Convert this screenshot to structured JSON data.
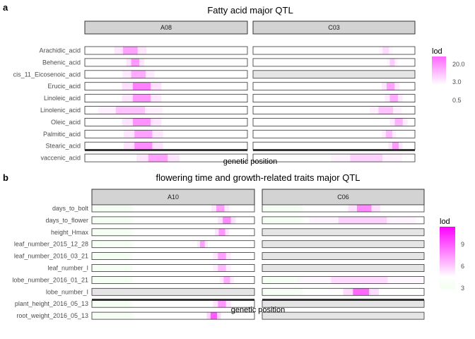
{
  "chart_data": [
    {
      "type": "heatmap",
      "panel_letter": "a",
      "title": "Fatty acid major QTL",
      "xlabel": "genetic position",
      "ylabel": "",
      "facets": [
        "A08",
        "C03"
      ],
      "traits": [
        "Arachidic_acid",
        "Behenic_acid",
        "cis_11_Eicosenoic_acid",
        "Erucic_acid",
        "Linoleic_acid",
        "Linolenic_acid",
        "Oleic_acid",
        "Palmitic_acid",
        "Stearic_acid",
        "vaccenic_acid"
      ],
      "legend": {
        "title": "lod",
        "ticks": [
          20.0,
          3.0,
          0.5
        ],
        "tick_labels": [
          "20.0",
          "3.0",
          "0.5"
        ],
        "scale": "log"
      },
      "colors": {
        "high": "#ff66ff",
        "low": "#ffffff",
        "strip_fill": "#d3d3d3",
        "na_row": "#e5e5e5"
      },
      "rows": [
        {
          "trait": "Arachidic_acid",
          "A08": {
            "peak": 0.28,
            "width": 0.09,
            "lod": 4.0
          },
          "C03": {
            "peak": 0.82,
            "width": 0.04,
            "lod": 0.8
          }
        },
        {
          "trait": "Behenic_acid",
          "A08": {
            "peak": 0.31,
            "width": 0.05,
            "lod": 5.0
          },
          "C03": {
            "peak": 0.86,
            "width": 0.03,
            "lod": 1.2
          }
        },
        {
          "trait": "cis_11_Eicosenoic_acid",
          "A08": {
            "peak": 0.33,
            "width": 0.09,
            "lod": 3.0
          },
          "C03": null
        },
        {
          "trait": "Erucic_acid",
          "A08": {
            "peak": 0.35,
            "width": 0.11,
            "lod": 10.0
          },
          "C03": {
            "peak": 0.85,
            "width": 0.05,
            "lod": 4.0
          }
        },
        {
          "trait": "Linoleic_acid",
          "A08": {
            "peak": 0.35,
            "width": 0.11,
            "lod": 5.0
          },
          "C03": {
            "peak": 0.87,
            "width": 0.05,
            "lod": 3.0
          }
        },
        {
          "trait": "Linolenic_acid",
          "A08": {
            "peak": 0.28,
            "width": 0.18,
            "lod": 1.5
          },
          "C03": {
            "peak": 0.82,
            "width": 0.09,
            "lod": 1.5
          }
        },
        {
          "trait": "Oleic_acid",
          "A08": {
            "peak": 0.35,
            "width": 0.11,
            "lod": 6.0
          },
          "C03": {
            "peak": 0.9,
            "width": 0.05,
            "lod": 2.5
          }
        },
        {
          "trait": "Palmitic_acid",
          "A08": {
            "peak": 0.36,
            "width": 0.11,
            "lod": 4.0
          },
          "C03": {
            "peak": 0.84,
            "width": 0.04,
            "lod": 2.0
          }
        },
        {
          "trait": "Stearic_acid",
          "A08": {
            "peak": 0.36,
            "width": 0.11,
            "lod": 7.0
          },
          "C03": {
            "peak": 0.88,
            "width": 0.04,
            "lod": 5.0
          }
        },
        {
          "trait": "vaccenic_acid",
          "A08": {
            "peak": 0.45,
            "width": 0.12,
            "lod": 4.0
          },
          "C03": {
            "peak": 0.7,
            "width": 0.2,
            "lod": 1.0
          }
        }
      ]
    },
    {
      "type": "heatmap",
      "panel_letter": "b",
      "title": "flowering time and growth-related traits major QTL",
      "xlabel": "genetic position",
      "ylabel": "",
      "facets": [
        "A10",
        "C06"
      ],
      "traits": [
        "days_to_bolt",
        "days_to_flower",
        "height_Hmax",
        "leaf_number_2015_12_28",
        "leaf_number_2016_03_21",
        "leaf_number_I",
        "lobe_number_2016_01_21",
        "lobe_number_I",
        "plant_height_2016_05_13",
        "root_weight_2016_05_13"
      ],
      "legend": {
        "title": "lod",
        "ticks": [
          9,
          6,
          3
        ],
        "tick_labels": [
          "9",
          "6",
          "3"
        ],
        "scale": "linear",
        "range": [
          0,
          11
        ]
      },
      "colors": {
        "high": "#ff00ff",
        "low": "#ffffff",
        "low_tint": "#f3fff0",
        "strip_fill": "#d3d3d3",
        "na_row": "#e5e5e5"
      },
      "rows": [
        {
          "trait": "days_to_bolt",
          "A10": {
            "peak": 0.79,
            "width": 0.05,
            "lod": 4.0
          },
          "C06": {
            "peak": 0.63,
            "width": 0.09,
            "lod": 5.0
          }
        },
        {
          "trait": "days_to_flower",
          "A10": {
            "peak": 0.83,
            "width": 0.05,
            "lod": 5.0
          },
          "C06": {
            "peak": 0.62,
            "width": 0.3,
            "lod": 2.0
          }
        },
        {
          "trait": "height_Hmax",
          "A10": {
            "peak": 0.8,
            "width": 0.04,
            "lod": 4.5
          },
          "C06": null
        },
        {
          "trait": "leaf_number_2015_12_28",
          "A10": {
            "peak": 0.68,
            "width": 0.03,
            "lod": 4.0
          },
          "C06": null
        },
        {
          "trait": "leaf_number_2016_03_21",
          "A10": {
            "peak": 0.8,
            "width": 0.05,
            "lod": 4.0
          },
          "C06": null
        },
        {
          "trait": "leaf_number_I",
          "A10": {
            "peak": 0.8,
            "width": 0.05,
            "lod": 3.0
          },
          "C06": null
        },
        {
          "trait": "lobe_number_2016_01_21",
          "A10": {
            "peak": 0.83,
            "width": 0.04,
            "lod": 3.5
          },
          "C06": {
            "peak": 0.6,
            "width": 0.35,
            "lod": 1.5
          }
        },
        {
          "trait": "lobe_number_I",
          "A10": null,
          "C06": {
            "peak": 0.61,
            "width": 0.1,
            "lod": 6.5
          }
        },
        {
          "trait": "plant_height_2016_05_13",
          "A10": {
            "peak": 0.8,
            "width": 0.05,
            "lod": 4.5
          },
          "C06": null
        },
        {
          "trait": "root_weight_2016_05_13",
          "A10": {
            "peak": 0.75,
            "width": 0.04,
            "lod": 7.0
          },
          "C06": null
        }
      ]
    }
  ]
}
